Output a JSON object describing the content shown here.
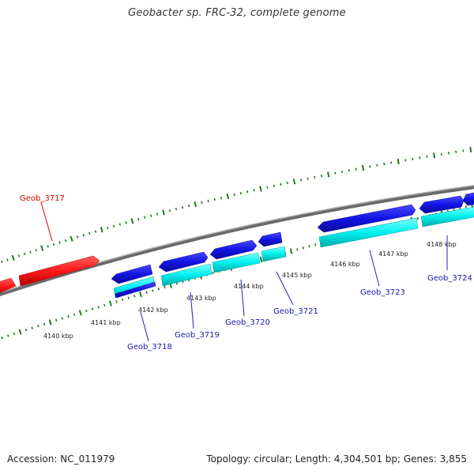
{
  "title": "Geobacter sp. FRC-32, complete genome",
  "footer": {
    "accession": "Accession: NC_011979",
    "summary": "Topology: circular; Length: 4,304,501 bp; Genes: 3,855"
  },
  "colors": {
    "backbone": "#8a8a8a",
    "tick": "#1e7a1e",
    "forward_gene": "#ff1a1a",
    "cds_blue": "#1414e6",
    "cds_cyan": "#00f0f0",
    "label_red": "#e00000",
    "label_blue": "#1a1aa8",
    "leader_red": "#e00000",
    "leader_blue": "#2020c0"
  },
  "kbp_labels": [
    {
      "text": "4140 kbp"
    },
    {
      "text": "4141 kbp"
    },
    {
      "text": "4142 kbp"
    },
    {
      "text": "4143 kbp"
    },
    {
      "text": "4144 kbp"
    },
    {
      "text": "4145 kbp"
    },
    {
      "text": "4146 kbp"
    },
    {
      "text": "4147 kbp"
    },
    {
      "text": "4148 kbp"
    }
  ],
  "genes": [
    {
      "label": "Geob_3717",
      "color": "red"
    },
    {
      "label": "Geob_3718",
      "color": "blue"
    },
    {
      "label": "Geob_3719",
      "color": "blue"
    },
    {
      "label": "Geob_3720",
      "color": "blue"
    },
    {
      "label": "Geob_3721",
      "color": "blue"
    },
    {
      "label": "Geob_3723",
      "color": "blue"
    },
    {
      "label": "Geob_3724",
      "color": "blue"
    }
  ]
}
